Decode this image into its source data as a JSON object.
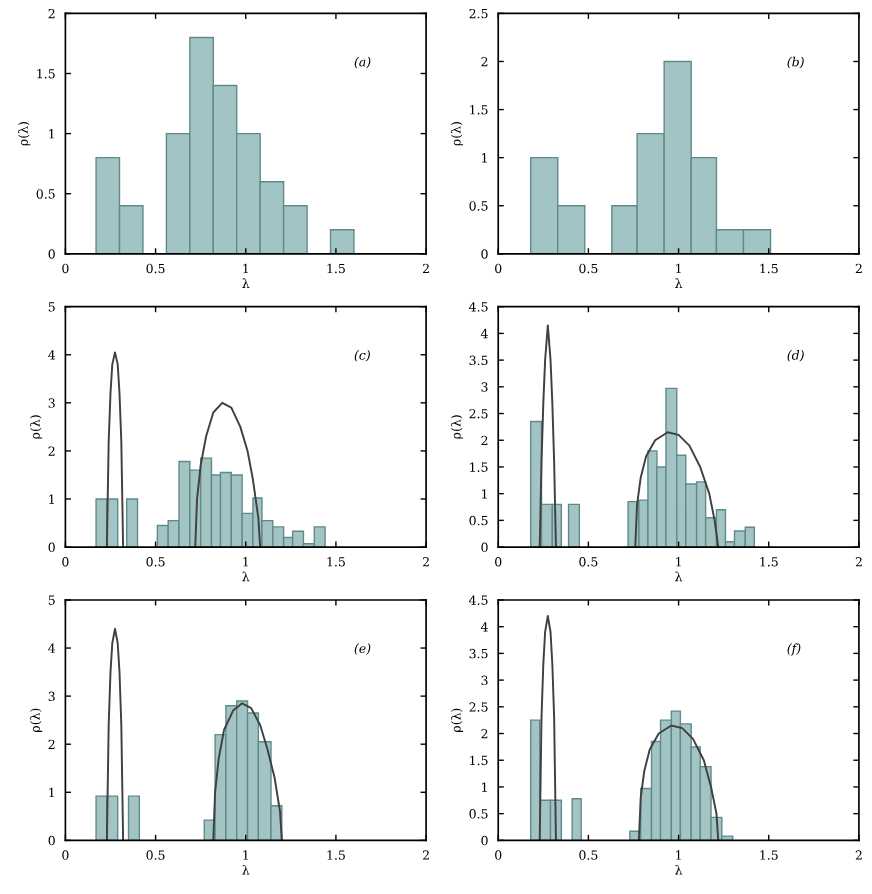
{
  "chart_data": [
    {
      "type": "histogram",
      "xlabel": "λ",
      "ylabel": "ρ(λ)",
      "annotations": [
        "(a)"
      ],
      "color": "#a3c4c4",
      "bins": [
        0.17,
        0.3,
        0.43,
        0.56,
        0.69,
        0.82,
        0.95,
        1.08,
        1.21,
        1.34,
        1.47,
        1.6
      ],
      "values": [
        0.8,
        0.4,
        0,
        1.0,
        1.8,
        1.4,
        1.0,
        0.6,
        0.4,
        0,
        0.2
      ],
      "xlim": [
        0,
        2
      ],
      "xticks": [
        0,
        0.5,
        1,
        1.5,
        2
      ],
      "ylim": [
        0,
        2
      ],
      "yticks": [
        0,
        0.5,
        1,
        1.5,
        2
      ],
      "grid": false,
      "legend": false
    },
    {
      "type": "histogram",
      "xlabel": "λ",
      "ylabel": "ρ(λ)",
      "annotations": [
        "(b)"
      ],
      "color": "#a3c4c4",
      "bins": [
        0.18,
        0.33,
        0.48,
        0.63,
        0.77,
        0.92,
        1.07,
        1.21,
        1.36,
        1.51
      ],
      "values": [
        1.0,
        0.5,
        0,
        0.5,
        1.25,
        2.0,
        1.0,
        0.25,
        0.25
      ],
      "xlim": [
        0,
        2
      ],
      "xticks": [
        0,
        0.5,
        1,
        1.5,
        2
      ],
      "ylim": [
        0,
        2.5
      ],
      "yticks": [
        0,
        0.5,
        1,
        1.5,
        2,
        2.5
      ],
      "grid": false,
      "legend": false
    },
    {
      "type": "histogram",
      "xlabel": "λ",
      "ylabel": "ρ(λ)",
      "annotations": [
        "(c)"
      ],
      "color": "#a3c4c4",
      "bins": [
        0.17,
        0.23,
        0.29,
        0.34,
        0.4,
        0.51,
        0.57,
        0.63,
        0.69,
        0.75,
        0.81,
        0.86,
        0.92,
        0.98,
        1.04,
        1.09,
        1.15,
        1.21,
        1.26,
        1.32,
        1.38,
        1.44
      ],
      "values": [
        1,
        1,
        0,
        1,
        0,
        0.45,
        0.55,
        1.78,
        1.6,
        1.85,
        1.5,
        1.55,
        1.5,
        0.7,
        1.02,
        0.55,
        0.42,
        0.2,
        0.33,
        0.07,
        0.42
      ],
      "xlim": [
        0,
        2
      ],
      "xticks": [
        0,
        0.5,
        1,
        1.5,
        2
      ],
      "ylim": [
        0,
        5
      ],
      "yticks": [
        0,
        1,
        2,
        3,
        4,
        5
      ],
      "grid": false,
      "legend": false,
      "series": [
        {
          "type": "line",
          "color": "#404040",
          "x": [
            0.23,
            0.24,
            0.25,
            0.26,
            0.275,
            0.29,
            0.3,
            0.31,
            0.32
          ],
          "values": [
            0,
            2.2,
            3.2,
            3.8,
            4.05,
            3.8,
            3.2,
            2.2,
            0
          ]
        },
        {
          "type": "line",
          "color": "#404040",
          "x": [
            0.72,
            0.73,
            0.75,
            0.78,
            0.82,
            0.87,
            0.92,
            0.97,
            1.01,
            1.04,
            1.07,
            1.08
          ],
          "values": [
            0,
            1.0,
            1.7,
            2.3,
            2.8,
            3.0,
            2.9,
            2.5,
            2.0,
            1.4,
            0.6,
            0
          ]
        }
      ]
    },
    {
      "type": "histogram",
      "xlabel": "λ",
      "ylabel": "ρ(λ)",
      "annotations": [
        "(d)"
      ],
      "color": "#a3c4c4",
      "bins": [
        0.18,
        0.24,
        0.3,
        0.35,
        0.39,
        0.45,
        0.72,
        0.78,
        0.83,
        0.88,
        0.93,
        0.99,
        1.04,
        1.1,
        1.15,
        1.21,
        1.26,
        1.31,
        1.37,
        1.42
      ],
      "values": [
        2.35,
        0.8,
        0.8,
        0,
        0.8,
        0,
        0.85,
        0.88,
        1.8,
        1.5,
        2.97,
        1.72,
        1.18,
        1.22,
        0.55,
        0.7,
        0.1,
        0.3,
        0.37
      ],
      "xlim": [
        0,
        2
      ],
      "xticks": [
        0,
        0.5,
        1,
        1.5,
        2
      ],
      "ylim": [
        0,
        4.5
      ],
      "yticks": [
        0,
        0.5,
        1,
        1.5,
        2,
        2.5,
        3,
        3.5,
        4,
        4.5
      ],
      "grid": false,
      "legend": false,
      "series": [
        {
          "type": "line",
          "color": "#404040",
          "x": [
            0.23,
            0.24,
            0.25,
            0.26,
            0.275,
            0.29,
            0.3,
            0.31,
            0.32
          ],
          "values": [
            0,
            1.6,
            2.7,
            3.5,
            4.15,
            3.5,
            2.7,
            1.6,
            0
          ]
        },
        {
          "type": "line",
          "color": "#404040",
          "x": [
            0.76,
            0.77,
            0.79,
            0.82,
            0.87,
            0.94,
            1.0,
            1.06,
            1.12,
            1.17,
            1.2,
            1.22
          ],
          "values": [
            0,
            0.8,
            1.3,
            1.7,
            2.0,
            2.15,
            2.1,
            1.9,
            1.5,
            1.0,
            0.5,
            0
          ]
        }
      ]
    },
    {
      "type": "histogram",
      "xlabel": "λ",
      "ylabel": "ρ(λ)",
      "annotations": [
        "(e)"
      ],
      "color": "#a3c4c4",
      "bins": [
        0.17,
        0.23,
        0.29,
        0.35,
        0.41,
        0.77,
        0.83,
        0.89,
        0.95,
        1.01,
        1.07,
        1.14,
        1.2
      ],
      "values": [
        0.92,
        0.92,
        0,
        0.92,
        0,
        0.42,
        2.2,
        2.8,
        2.9,
        2.65,
        2.05,
        0.72
      ],
      "xlim": [
        0,
        2
      ],
      "xticks": [
        0,
        0.5,
        1,
        1.5,
        2
      ],
      "ylim": [
        0,
        5
      ],
      "yticks": [
        0,
        1,
        2,
        3,
        4,
        5
      ],
      "grid": false,
      "legend": false,
      "series": [
        {
          "type": "line",
          "color": "#404040",
          "x": [
            0.23,
            0.24,
            0.25,
            0.26,
            0.275,
            0.29,
            0.3,
            0.31,
            0.32
          ],
          "values": [
            0,
            2.4,
            3.5,
            4.1,
            4.4,
            4.1,
            3.5,
            2.4,
            0
          ]
        },
        {
          "type": "line",
          "color": "#404040",
          "x": [
            0.82,
            0.83,
            0.85,
            0.88,
            0.93,
            0.98,
            1.03,
            1.08,
            1.12,
            1.16,
            1.19,
            1.2
          ],
          "values": [
            0,
            1.0,
            1.7,
            2.3,
            2.7,
            2.85,
            2.75,
            2.4,
            1.9,
            1.3,
            0.6,
            0
          ]
        }
      ]
    },
    {
      "type": "histogram",
      "xlabel": "λ",
      "ylabel": "ρ(λ)",
      "annotations": [
        "(f)"
      ],
      "color": "#a3c4c4",
      "bins": [
        0.18,
        0.23,
        0.29,
        0.35,
        0.41,
        0.46,
        0.73,
        0.79,
        0.85,
        0.9,
        0.96,
        1.01,
        1.07,
        1.12,
        1.18,
        1.24,
        1.3
      ],
      "values": [
        2.25,
        0.75,
        0.75,
        0,
        0.78,
        0,
        0.17,
        0.97,
        1.85,
        2.25,
        2.42,
        2.18,
        1.75,
        1.38,
        0.43,
        0.08
      ],
      "xlim": [
        0,
        2
      ],
      "xticks": [
        0,
        0.5,
        1,
        1.5,
        2
      ],
      "ylim": [
        0,
        4.5
      ],
      "yticks": [
        0,
        0.5,
        1,
        1.5,
        2,
        2.5,
        3,
        3.5,
        4,
        4.5
      ],
      "grid": false,
      "legend": false,
      "series": [
        {
          "type": "line",
          "color": "#404040",
          "x": [
            0.23,
            0.24,
            0.25,
            0.26,
            0.275,
            0.29,
            0.3,
            0.31,
            0.32
          ],
          "values": [
            0,
            2.3,
            3.3,
            3.9,
            4.2,
            3.9,
            3.3,
            2.3,
            0
          ]
        },
        {
          "type": "line",
          "color": "#404040",
          "x": [
            0.78,
            0.79,
            0.81,
            0.84,
            0.89,
            0.96,
            1.02,
            1.08,
            1.14,
            1.18,
            1.21,
            1.22
          ],
          "values": [
            0,
            0.8,
            1.3,
            1.7,
            2.0,
            2.15,
            2.1,
            1.9,
            1.5,
            1.0,
            0.5,
            0
          ]
        }
      ]
    }
  ]
}
